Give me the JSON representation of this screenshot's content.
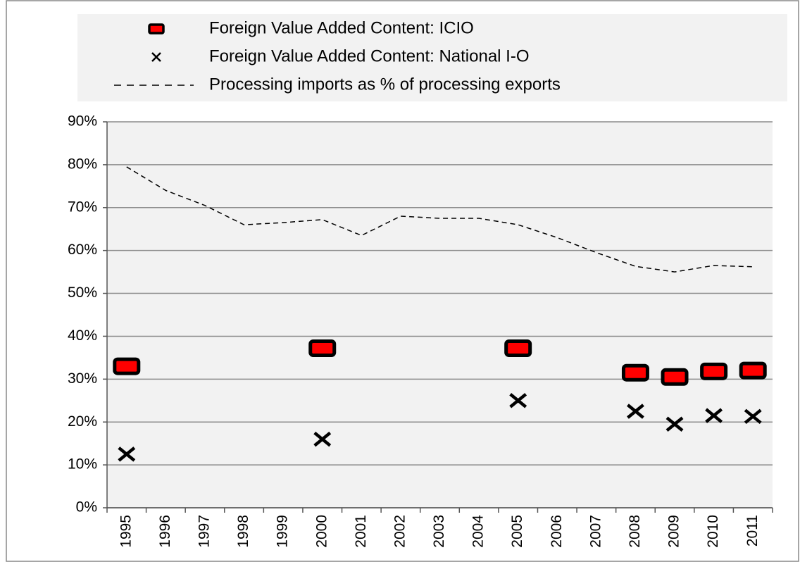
{
  "chart_data": {
    "type": "line",
    "categories": [
      "1995",
      "1996",
      "1997",
      "1998",
      "1999",
      "2000",
      "2001",
      "2002",
      "2003",
      "2004",
      "2005",
      "2006",
      "2007",
      "2008",
      "2009",
      "2010",
      "2011"
    ],
    "series": [
      {
        "name": "Foreign Value Added Content: ICIO",
        "type": "square",
        "color": "#ff0000",
        "values": [
          33,
          null,
          null,
          null,
          null,
          37.2,
          null,
          null,
          null,
          null,
          37.2,
          null,
          null,
          31.5,
          30.5,
          31.8,
          32
        ]
      },
      {
        "name": "Foreign Value Added Content: National I-O",
        "type": "cross",
        "color": "#000000",
        "values": [
          12.5,
          null,
          null,
          null,
          null,
          16,
          null,
          null,
          null,
          null,
          25,
          null,
          null,
          22.5,
          19.5,
          21.5,
          21.3
        ]
      },
      {
        "name": "Processing imports as % of processing exports",
        "type": "dashed",
        "color": "#000000",
        "values": [
          79.5,
          74,
          70.5,
          66,
          66.5,
          67.2,
          63.5,
          68,
          67.5,
          67.5,
          66,
          63,
          59.5,
          56.3,
          55,
          56.5,
          56.2
        ]
      }
    ],
    "ylim": [
      0,
      90
    ],
    "yticks": [
      {
        "value": 0,
        "label": "0%"
      },
      {
        "value": 10,
        "label": "10%"
      },
      {
        "value": 20,
        "label": "20%"
      },
      {
        "value": 30,
        "label": "30%"
      },
      {
        "value": 40,
        "label": "40%"
      },
      {
        "value": 50,
        "label": "50%"
      },
      {
        "value": 60,
        "label": "60%"
      },
      {
        "value": 70,
        "label": "70%"
      },
      {
        "value": 80,
        "label": "80%"
      },
      {
        "value": 90,
        "label": "90%"
      }
    ],
    "grid": true,
    "legend": "top"
  }
}
